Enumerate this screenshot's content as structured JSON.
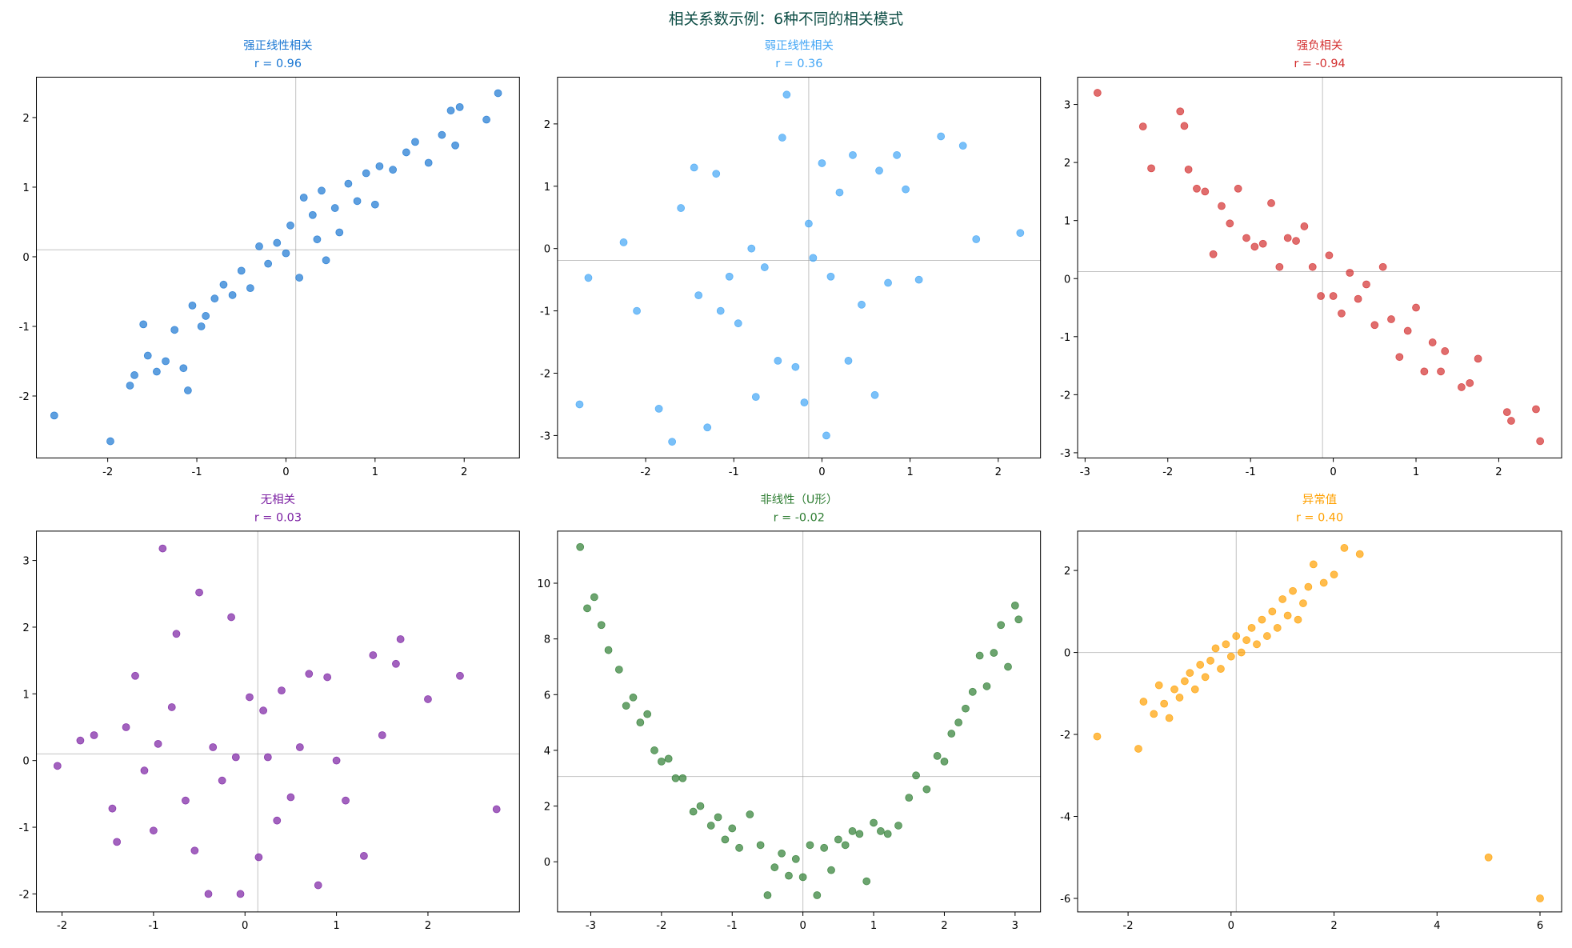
{
  "title": "相关系数示例：6种不同的相关模式",
  "chart_data": [
    {
      "type": "scatter",
      "title": "强正线性相关",
      "subtitle": "r = 0.96",
      "color": "#1976d2",
      "x": [
        -2.6,
        -1.97,
        -1.75,
        -1.7,
        -1.6,
        -1.55,
        -1.45,
        -1.35,
        -1.25,
        -1.15,
        -1.1,
        -1.05,
        -0.95,
        -0.9,
        -0.8,
        -0.7,
        -0.6,
        -0.5,
        -0.4,
        -0.3,
        -0.2,
        -0.1,
        0.0,
        0.05,
        0.15,
        0.2,
        0.3,
        0.35,
        0.4,
        0.45,
        0.55,
        0.6,
        0.7,
        0.8,
        0.9,
        1.0,
        1.05,
        1.2,
        1.35,
        1.45,
        1.6,
        1.75,
        1.85,
        1.9,
        1.95,
        2.25,
        2.38
      ],
      "y": [
        -2.28,
        -2.65,
        -1.85,
        -1.7,
        -0.97,
        -1.42,
        -1.65,
        -1.5,
        -1.05,
        -1.6,
        -1.92,
        -0.7,
        -1.0,
        -0.85,
        -0.6,
        -0.4,
        -0.55,
        -0.2,
        -0.45,
        0.15,
        -0.1,
        0.2,
        0.05,
        0.45,
        -0.3,
        0.85,
        0.6,
        0.25,
        0.95,
        -0.05,
        0.7,
        0.35,
        1.05,
        0.8,
        1.2,
        0.75,
        1.3,
        1.25,
        1.5,
        1.65,
        1.35,
        1.75,
        2.1,
        1.6,
        2.15,
        1.97,
        2.35
      ],
      "xlim": [
        -2.8,
        2.62
      ],
      "ylim": [
        -2.89,
        2.58
      ],
      "xticks": [
        -2,
        -1,
        0,
        1,
        2
      ],
      "yticks": [
        -2,
        -1,
        0,
        1,
        2
      ],
      "vline": 0.11,
      "hline": 0.1
    },
    {
      "type": "scatter",
      "title": "弱正线性相关",
      "subtitle": "r = 0.36",
      "color": "#42a5f5",
      "x": [
        -2.75,
        -2.65,
        -2.25,
        -2.1,
        -1.85,
        -1.7,
        -1.6,
        -1.45,
        -1.4,
        -1.3,
        -1.2,
        -1.15,
        -1.05,
        -0.95,
        -0.8,
        -0.75,
        -0.65,
        -0.5,
        -0.45,
        -0.4,
        -0.3,
        -0.2,
        -0.15,
        -0.1,
        0.0,
        0.05,
        0.1,
        0.2,
        0.3,
        0.35,
        0.45,
        0.6,
        0.65,
        0.75,
        0.85,
        0.95,
        1.1,
        1.35,
        1.6,
        1.75,
        2.25
      ],
      "y": [
        -2.5,
        -0.47,
        0.1,
        -1.0,
        -2.57,
        -3.1,
        0.65,
        1.3,
        -0.75,
        -2.87,
        1.2,
        -1.0,
        -0.45,
        -1.2,
        0.0,
        -2.38,
        -0.3,
        -1.8,
        1.78,
        2.47,
        -1.9,
        -2.47,
        0.4,
        -0.15,
        1.37,
        -3.0,
        -0.45,
        0.9,
        -1.8,
        1.5,
        -0.9,
        -2.35,
        1.25,
        -0.55,
        1.5,
        0.95,
        -0.5,
        1.8,
        1.65,
        0.15,
        0.25
      ],
      "xlim": [
        -3.0,
        2.48
      ],
      "ylim": [
        -3.36,
        2.75
      ],
      "xticks": [
        -2,
        -1,
        0,
        1,
        2
      ],
      "yticks": [
        -3,
        -2,
        -1,
        0,
        1,
        2
      ],
      "vline": -0.15,
      "hline": -0.19
    },
    {
      "type": "scatter",
      "title": "强负相关",
      "subtitle": "r = -0.94",
      "color": "#d32f2f",
      "x": [
        -2.85,
        -2.3,
        -2.2,
        -1.85,
        -1.8,
        -1.75,
        -1.65,
        -1.55,
        -1.45,
        -1.35,
        -1.25,
        -1.15,
        -1.05,
        -0.95,
        -0.85,
        -0.75,
        -0.65,
        -0.55,
        -0.45,
        -0.35,
        -0.25,
        -0.15,
        -0.05,
        0.0,
        0.1,
        0.2,
        0.3,
        0.4,
        0.5,
        0.6,
        0.7,
        0.8,
        0.9,
        1.0,
        1.1,
        1.2,
        1.3,
        1.35,
        1.55,
        1.65,
        1.75,
        2.1,
        2.15,
        2.45,
        2.5
      ],
      "y": [
        3.2,
        2.62,
        1.9,
        2.88,
        2.63,
        1.88,
        1.55,
        1.5,
        0.42,
        1.25,
        0.95,
        1.55,
        0.7,
        0.55,
        0.6,
        1.3,
        0.2,
        0.7,
        0.65,
        0.9,
        0.2,
        -0.3,
        0.4,
        -0.3,
        -0.6,
        0.1,
        -0.35,
        -0.1,
        -0.8,
        0.2,
        -0.7,
        -1.35,
        -0.9,
        -0.5,
        -1.6,
        -1.1,
        -1.6,
        -1.25,
        -1.87,
        -1.8,
        -1.38,
        -2.3,
        -2.45,
        -2.25,
        -2.8
      ],
      "xlim": [
        -3.09,
        2.76
      ],
      "ylim": [
        -3.09,
        3.47
      ],
      "xticks": [
        -3,
        -2,
        -1,
        0,
        1,
        2
      ],
      "yticks": [
        -3,
        -2,
        -1,
        0,
        1,
        2,
        3
      ],
      "vline": -0.13,
      "hline": 0.12
    },
    {
      "type": "scatter",
      "title": "无相关",
      "subtitle": "r = 0.03",
      "color": "#7b1fa2",
      "x": [
        -2.05,
        -1.8,
        -1.65,
        -1.45,
        -1.4,
        -1.3,
        -1.2,
        -1.1,
        -1.0,
        -0.95,
        -0.9,
        -0.8,
        -0.75,
        -0.65,
        -0.55,
        -0.5,
        -0.4,
        -0.35,
        -0.25,
        -0.15,
        -0.1,
        -0.05,
        0.05,
        0.15,
        0.2,
        0.25,
        0.35,
        0.4,
        0.5,
        0.6,
        0.7,
        0.8,
        0.9,
        1.0,
        1.1,
        1.3,
        1.4,
        1.5,
        1.65,
        1.7,
        2.0,
        2.35,
        2.75
      ],
      "y": [
        -0.08,
        0.3,
        0.38,
        -0.72,
        -1.22,
        0.5,
        1.27,
        -0.15,
        -1.05,
        0.25,
        3.18,
        0.8,
        1.9,
        -0.6,
        -1.35,
        2.52,
        -2.0,
        0.2,
        -0.3,
        2.15,
        0.05,
        -2.0,
        0.95,
        -1.45,
        0.75,
        0.05,
        -0.9,
        1.05,
        -0.55,
        0.2,
        1.3,
        -1.87,
        1.25,
        0.0,
        -0.6,
        -1.43,
        1.58,
        0.38,
        1.45,
        1.82,
        0.92,
        1.27,
        -0.73
      ],
      "xlim": [
        -2.28,
        3.0
      ],
      "ylim": [
        -2.27,
        3.44
      ],
      "xticks": [
        -2,
        -1,
        0,
        1,
        2
      ],
      "yticks": [
        -2,
        -1,
        0,
        1,
        2,
        3
      ],
      "vline": 0.14,
      "hline": 0.1
    },
    {
      "type": "scatter",
      "title": "非线性（U形）",
      "subtitle": "r = -0.02",
      "color": "#2e7d32",
      "x": [
        -3.15,
        -3.05,
        -2.95,
        -2.85,
        -2.75,
        -2.6,
        -2.5,
        -2.4,
        -2.3,
        -2.2,
        -2.1,
        -2.0,
        -1.9,
        -1.8,
        -1.7,
        -1.55,
        -1.45,
        -1.3,
        -1.2,
        -1.1,
        -1.0,
        -0.9,
        -0.75,
        -0.6,
        -0.5,
        -0.4,
        -0.3,
        -0.2,
        -0.1,
        0.0,
        0.1,
        0.2,
        0.3,
        0.4,
        0.5,
        0.6,
        0.7,
        0.8,
        0.9,
        1.0,
        1.1,
        1.2,
        1.35,
        1.5,
        1.6,
        1.75,
        1.9,
        2.0,
        2.1,
        2.2,
        2.3,
        2.4,
        2.5,
        2.6,
        2.7,
        2.8,
        2.9,
        3.0,
        3.05
      ],
      "y": [
        11.3,
        9.1,
        9.5,
        8.5,
        7.6,
        6.9,
        5.6,
        5.9,
        5.0,
        5.3,
        4.0,
        3.6,
        3.7,
        3.0,
        3.0,
        1.8,
        2.0,
        1.3,
        1.6,
        0.8,
        1.2,
        0.5,
        1.7,
        0.6,
        -1.2,
        -0.2,
        0.3,
        -0.5,
        0.1,
        -0.55,
        0.6,
        -1.2,
        0.5,
        -0.3,
        0.8,
        0.6,
        1.1,
        1.0,
        -0.7,
        1.4,
        1.1,
        1.0,
        1.3,
        2.3,
        3.1,
        2.6,
        3.8,
        3.6,
        4.6,
        5.0,
        5.5,
        6.1,
        7.4,
        6.3,
        7.5,
        8.5,
        7.0,
        9.2,
        8.7
      ],
      "xlim": [
        -3.47,
        3.36
      ],
      "ylim": [
        -1.8,
        11.87
      ],
      "xticks": [
        -3,
        -2,
        -1,
        0,
        1,
        2,
        3
      ],
      "yticks": [
        0,
        2,
        4,
        6,
        8,
        10
      ],
      "vline": 0.0,
      "hline": 3.06
    },
    {
      "type": "scatter",
      "title": "异常值",
      "subtitle": "r = 0.40",
      "color": "#ffa000",
      "x": [
        -2.6,
        -1.8,
        -1.7,
        -1.5,
        -1.4,
        -1.3,
        -1.2,
        -1.1,
        -1.0,
        -0.9,
        -0.8,
        -0.7,
        -0.6,
        -0.5,
        -0.4,
        -0.3,
        -0.2,
        -0.1,
        0.0,
        0.1,
        0.2,
        0.3,
        0.4,
        0.5,
        0.6,
        0.7,
        0.8,
        0.9,
        1.0,
        1.1,
        1.2,
        1.3,
        1.4,
        1.5,
        1.6,
        1.8,
        2.0,
        2.2,
        2.5,
        5.0,
        6.0
      ],
      "y": [
        -2.05,
        -2.35,
        -1.2,
        -1.5,
        -0.8,
        -1.25,
        -1.6,
        -0.9,
        -1.1,
        -0.7,
        -0.5,
        -0.9,
        -0.3,
        -0.6,
        -0.2,
        0.1,
        -0.4,
        0.2,
        -0.1,
        0.4,
        0.0,
        0.3,
        0.6,
        0.2,
        0.8,
        0.4,
        1.0,
        0.6,
        1.3,
        0.9,
        1.5,
        0.8,
        1.2,
        1.6,
        2.15,
        1.7,
        1.9,
        2.55,
        2.4,
        -5.0,
        -6.0
      ],
      "xlim": [
        -2.98,
        6.42
      ],
      "ylim": [
        -6.33,
        2.96
      ],
      "xticks": [
        -2,
        0,
        2,
        4,
        6
      ],
      "yticks": [
        -6,
        -4,
        -2,
        0,
        2
      ],
      "vline": 0.1,
      "hline": 0.0
    }
  ]
}
